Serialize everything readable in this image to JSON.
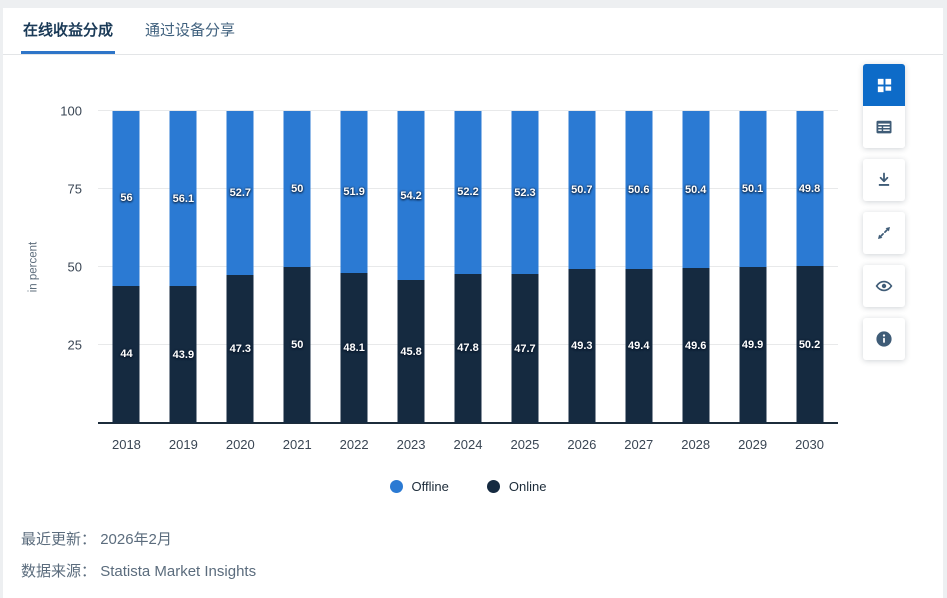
{
  "tabs": [
    {
      "label": "在线收益分成",
      "active": true
    },
    {
      "label": "通过设备分享",
      "active": false
    }
  ],
  "colors": {
    "offline": "#2b7ad3",
    "online": "#152a40",
    "active_button": "#0d6bc8",
    "tab_accent": "#2e75c8"
  },
  "chart_data": {
    "type": "bar",
    "stacked": true,
    "categories": [
      "2018",
      "2019",
      "2020",
      "2021",
      "2022",
      "2023",
      "2024",
      "2025",
      "2026",
      "2027",
      "2028",
      "2029",
      "2030"
    ],
    "series": [
      {
        "name": "Offline",
        "color": "#2b7ad3",
        "values": [
          56,
          56.1,
          52.7,
          50,
          51.9,
          54.2,
          52.2,
          52.3,
          50.7,
          50.6,
          50.4,
          50.1,
          49.8
        ]
      },
      {
        "name": "Online",
        "color": "#152a40",
        "values": [
          44,
          43.9,
          47.3,
          50,
          48.1,
          45.8,
          47.8,
          47.7,
          49.3,
          49.4,
          49.6,
          49.9,
          50.2
        ]
      }
    ],
    "stack_order_bottom_to_top": [
      "Online",
      "Offline"
    ],
    "title": "",
    "xlabel": "",
    "ylabel": "in percent",
    "ylim": [
      0,
      100
    ],
    "yticks": [
      25,
      50,
      75,
      100
    ],
    "grid": true,
    "legend_position": "bottom"
  },
  "toolbar": {
    "buttons": [
      {
        "name": "chart-view",
        "icon": "grid-icon",
        "active": true
      },
      {
        "name": "table-view",
        "icon": "table-icon",
        "active": false
      },
      {
        "name": "download",
        "icon": "download-icon",
        "active": false
      },
      {
        "name": "fullscreen",
        "icon": "expand-arrows-icon",
        "active": false
      },
      {
        "name": "toggle-visibility",
        "icon": "eye-icon",
        "active": false
      },
      {
        "name": "info",
        "icon": "info-icon",
        "active": false
      }
    ]
  },
  "footer": {
    "updated_label": "最近更新：",
    "updated_value": "2026年2月",
    "source_label": "数据来源：",
    "source_value": "Statista Market Insights"
  }
}
